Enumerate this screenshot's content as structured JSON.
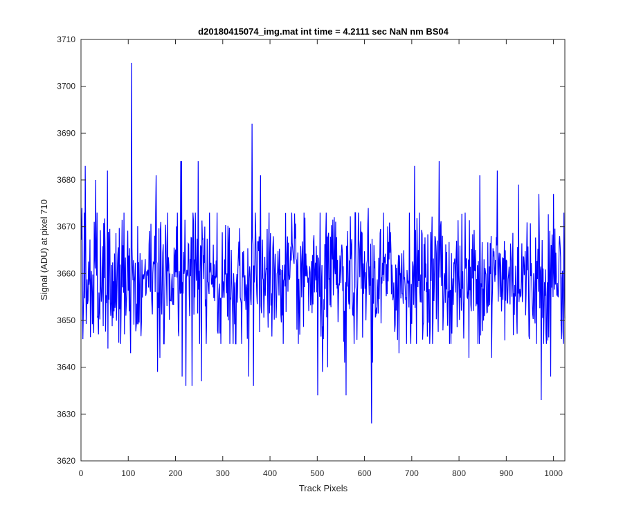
{
  "chart_data": {
    "type": "line",
    "title": "d20180415074_img.mat int time = 4.2111 sec  NaN nm BS04",
    "xlabel": "Track Pixels",
    "ylabel": "Signal (ADU) at pixel 710",
    "xlim": [
      0,
      1024
    ],
    "ylim": [
      3620,
      3710
    ],
    "xticks": [
      0,
      100,
      200,
      300,
      400,
      500,
      600,
      700,
      800,
      900,
      1000
    ],
    "yticks": [
      3620,
      3630,
      3640,
      3650,
      3660,
      3670,
      3680,
      3690,
      3700,
      3710
    ],
    "grid": false,
    "legend": "none",
    "series": [
      {
        "color": "#0000ff",
        "n_points": 1024,
        "baseline": 3659,
        "noise_sd": 7,
        "noise_seed": 74,
        "highlights": [
          {
            "x": 1,
            "y": 3674
          },
          {
            "x": 3,
            "y": 3646
          },
          {
            "x": 8,
            "y": 3683
          },
          {
            "x": 30,
            "y": 3680
          },
          {
            "x": 36,
            "y": 3647
          },
          {
            "x": 55,
            "y": 3682
          },
          {
            "x": 56,
            "y": 3644
          },
          {
            "x": 91,
            "y": 3647
          },
          {
            "x": 104,
            "y": 3643
          },
          {
            "x": 106,
            "y": 3705
          },
          {
            "x": 158,
            "y": 3681
          },
          {
            "x": 161,
            "y": 3639
          },
          {
            "x": 166,
            "y": 3642
          },
          {
            "x": 210,
            "y": 3684
          },
          {
            "x": 212,
            "y": 3684
          },
          {
            "x": 213,
            "y": 3638
          },
          {
            "x": 221,
            "y": 3636
          },
          {
            "x": 234,
            "y": 3636
          },
          {
            "x": 247,
            "y": 3684
          },
          {
            "x": 254,
            "y": 3637
          },
          {
            "x": 354,
            "y": 3638
          },
          {
            "x": 361,
            "y": 3692
          },
          {
            "x": 364,
            "y": 3636
          },
          {
            "x": 379,
            "y": 3681
          },
          {
            "x": 456,
            "y": 3648
          },
          {
            "x": 500,
            "y": 3634
          },
          {
            "x": 510,
            "y": 3639
          },
          {
            "x": 521,
            "y": 3640
          },
          {
            "x": 557,
            "y": 3641
          },
          {
            "x": 560,
            "y": 3634
          },
          {
            "x": 607,
            "y": 3674
          },
          {
            "x": 614,
            "y": 3628
          },
          {
            "x": 616,
            "y": 3641
          },
          {
            "x": 672,
            "y": 3643
          },
          {
            "x": 705,
            "y": 3683
          },
          {
            "x": 757,
            "y": 3684
          },
          {
            "x": 779,
            "y": 3645
          },
          {
            "x": 820,
            "y": 3642
          },
          {
            "x": 843,
            "y": 3681
          },
          {
            "x": 868,
            "y": 3642
          },
          {
            "x": 880,
            "y": 3682
          },
          {
            "x": 925,
            "y": 3679
          },
          {
            "x": 948,
            "y": 3646
          },
          {
            "x": 968,
            "y": 3677
          },
          {
            "x": 973,
            "y": 3633
          },
          {
            "x": 993,
            "y": 3638
          },
          {
            "x": 999,
            "y": 3677
          },
          {
            "x": 1013,
            "y": 3666
          },
          {
            "x": 1016,
            "y": 3646
          }
        ]
      }
    ]
  }
}
